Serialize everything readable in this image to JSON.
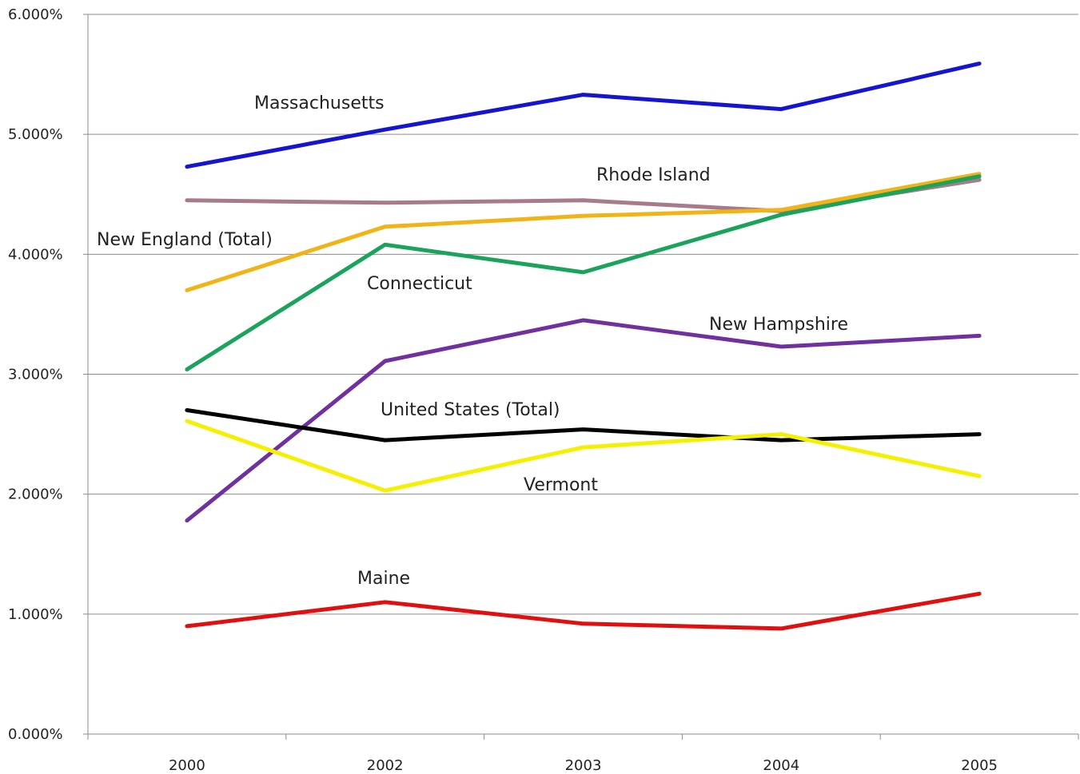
{
  "chart_data": {
    "type": "line",
    "x": [
      "2000",
      "2002",
      "2003",
      "2004",
      "2005"
    ],
    "ylim": [
      0,
      6
    ],
    "y_ticks": [
      {
        "value": 0,
        "label": "0.000%"
      },
      {
        "value": 1,
        "label": "1.000%"
      },
      {
        "value": 2,
        "label": "2.000%"
      },
      {
        "value": 3,
        "label": "3.000%"
      },
      {
        "value": 4,
        "label": "4.000%"
      },
      {
        "value": 5,
        "label": "5.000%"
      },
      {
        "value": 6,
        "label": "6.000%"
      }
    ],
    "grid": true,
    "legend": "none (direct labels)",
    "series": [
      {
        "name": "Massachusetts",
        "color": "#1515d0",
        "values": [
          4.73,
          5.04,
          5.33,
          5.21,
          5.59
        ]
      },
      {
        "name": "Rhode Island",
        "color": "#a87a8c",
        "values": [
          4.45,
          4.43,
          4.45,
          4.36,
          4.62
        ]
      },
      {
        "name": "New England (Total)",
        "color": "#f2b316",
        "values": [
          3.7,
          4.23,
          4.32,
          4.37,
          4.67
        ]
      },
      {
        "name": "Connecticut",
        "color": "#1aa35a",
        "values": [
          3.04,
          4.08,
          3.85,
          4.33,
          4.65
        ]
      },
      {
        "name": "New Hampshire",
        "color": "#7030a0",
        "values": [
          1.78,
          3.11,
          3.45,
          3.23,
          3.32
        ]
      },
      {
        "name": "United States (Total)",
        "color": "#000000",
        "values": [
          2.7,
          2.45,
          2.54,
          2.45,
          2.5
        ]
      },
      {
        "name": "Vermont",
        "color": "#f5f000",
        "values": [
          2.61,
          2.03,
          2.39,
          2.5,
          2.15
        ]
      },
      {
        "name": "Maine",
        "color": "#e01010",
        "values": [
          0.9,
          1.1,
          0.92,
          0.88,
          1.17
        ]
      }
    ]
  }
}
